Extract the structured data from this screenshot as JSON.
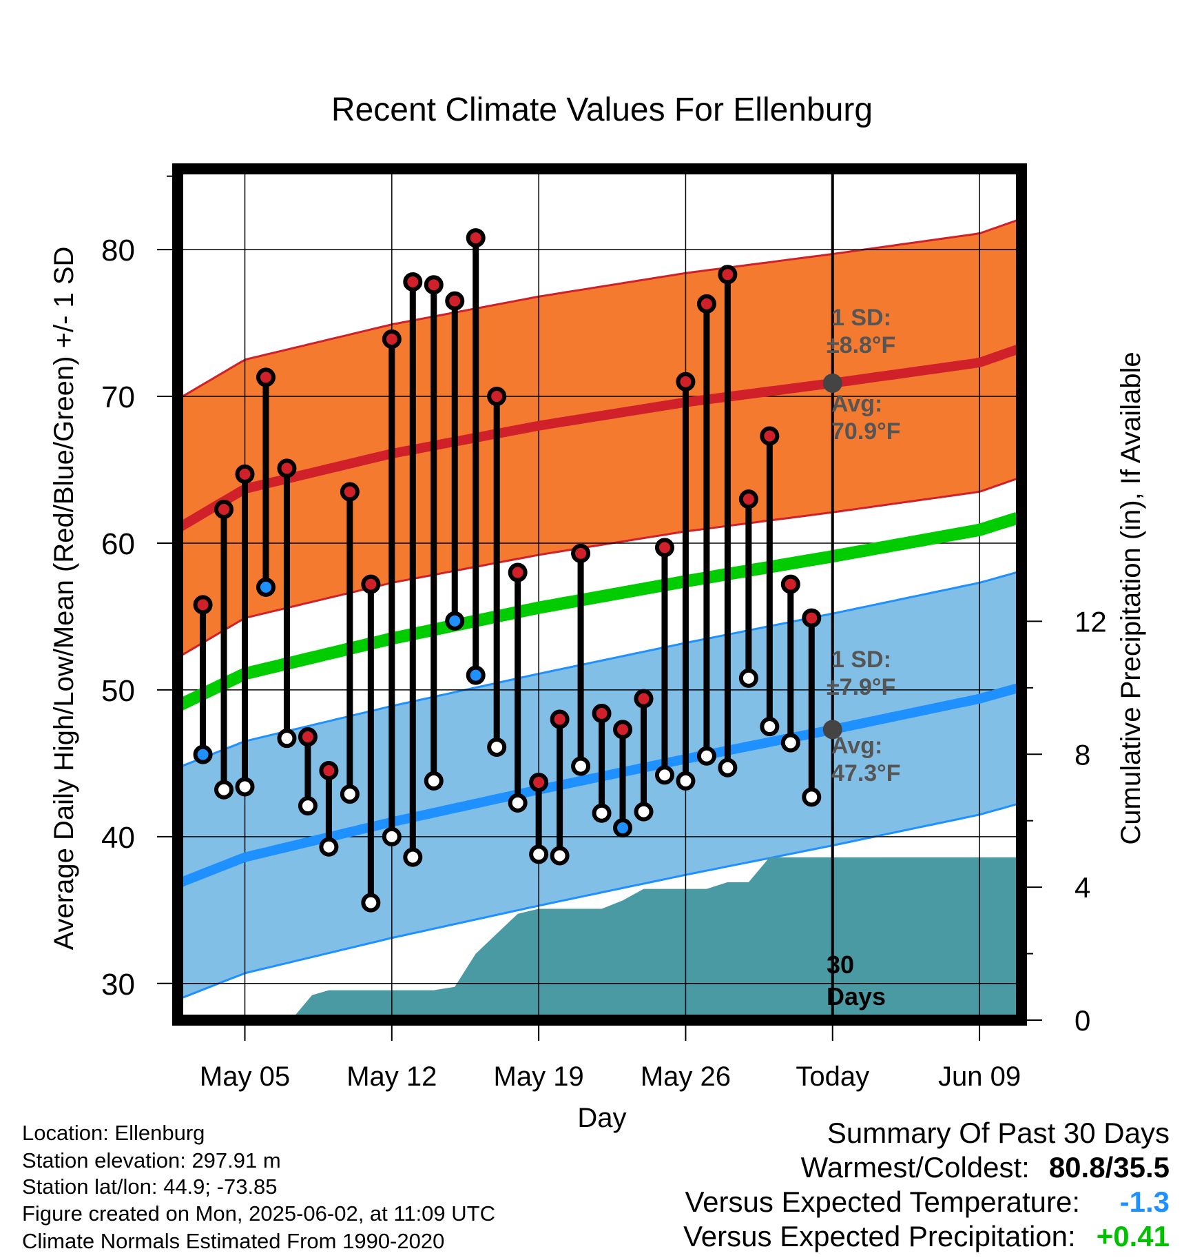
{
  "chart_data": {
    "type": "line",
    "title": "Recent Climate Values For Ellenburg",
    "xlabel": "Day",
    "ylabel": "Average Daily High/Low/Mean (Red/Blue/Green) +/- 1 SD",
    "y2label": "Cumulative Precipitation (in), If Available",
    "ylim": [
      27.5,
      85.5
    ],
    "y_ticks": [
      30,
      40,
      50,
      60,
      70,
      80
    ],
    "y2lim": [
      0,
      14
    ],
    "y2_ticks": [
      0,
      4,
      8,
      12
    ],
    "x_ticks": [
      {
        "day": 5,
        "label": "May 05"
      },
      {
        "day": 12,
        "label": "May 12"
      },
      {
        "day": 19,
        "label": "May 19"
      },
      {
        "day": 26,
        "label": "May 26"
      },
      {
        "day": 33,
        "label": "Today"
      },
      {
        "day": 40,
        "label": "Jun 09"
      }
    ],
    "x_range": [
      1.8,
      42.0
    ],
    "today_day": 33,
    "today_annotation": "30\nDays",
    "grid": true,
    "observed": {
      "days": [
        3,
        4,
        5,
        6,
        7,
        8,
        9,
        10,
        11,
        12,
        13,
        14,
        15,
        16,
        17,
        18,
        19,
        20,
        21,
        22,
        23,
        24,
        25,
        26,
        27,
        28,
        29,
        30,
        31,
        32
      ],
      "high": [
        55.8,
        62.3,
        64.7,
        71.3,
        65.1,
        46.8,
        44.5,
        63.5,
        57.2,
        73.9,
        77.8,
        77.6,
        76.5,
        80.8,
        70.0,
        58.0,
        43.7,
        48.0,
        59.3,
        48.4,
        47.3,
        49.4,
        59.7,
        71.0,
        76.3,
        78.3,
        63.0,
        67.3,
        57.2,
        54.9
      ],
      "low": [
        45.6,
        43.2,
        43.4,
        57.0,
        46.7,
        42.1,
        39.3,
        42.9,
        35.5,
        40.0,
        38.6,
        43.8,
        54.7,
        51.0,
        46.1,
        42.3,
        38.8,
        38.7,
        44.8,
        41.6,
        40.6,
        41.7,
        44.2,
        43.8,
        45.5,
        44.7,
        50.8,
        47.5,
        46.4,
        42.7
      ],
      "low_above_normal": [
        true,
        false,
        false,
        true,
        false,
        false,
        false,
        false,
        false,
        false,
        false,
        false,
        true,
        true,
        false,
        false,
        false,
        false,
        false,
        false,
        true,
        false,
        false,
        false,
        false,
        false,
        false,
        false,
        false,
        false
      ]
    },
    "normal_high": {
      "days": [
        1.8,
        5,
        12,
        19,
        26,
        33,
        40,
        42
      ],
      "avg": [
        61.0,
        63.7,
        66.1,
        68.0,
        69.6,
        70.9,
        72.3,
        73.3
      ],
      "sd": 8.8
    },
    "normal_low": {
      "days": [
        1.8,
        5,
        12,
        19,
        26,
        33,
        40,
        42
      ],
      "avg": [
        36.8,
        38.6,
        41.0,
        43.2,
        45.3,
        47.3,
        49.4,
        50.2
      ],
      "sd": 7.9
    },
    "normal_mean": {
      "days": [
        1.8,
        5,
        12,
        19,
        26,
        33,
        40,
        42
      ],
      "avg": [
        48.9,
        51.1,
        53.5,
        55.6,
        57.4,
        59.1,
        60.9,
        61.8
      ]
    },
    "precip": {
      "days": [
        7.2,
        8.2,
        9.0,
        10.0,
        11.0,
        12.0,
        13.0,
        14.0,
        15.0,
        16.0,
        17.0,
        18.0,
        19.0,
        20.0,
        21.0,
        22.0,
        23.0,
        24.0,
        25.0,
        26.0,
        27.0,
        28.0,
        29.0,
        30.0,
        31.0,
        32.0,
        33.0,
        42.0
      ],
      "cum": [
        0.0,
        0.75,
        0.9,
        0.9,
        0.9,
        0.9,
        0.9,
        0.9,
        1.0,
        2.0,
        2.6,
        3.2,
        3.35,
        3.35,
        3.35,
        3.35,
        3.6,
        3.95,
        3.95,
        3.95,
        3.95,
        4.15,
        4.15,
        4.9,
        4.9,
        4.9,
        4.9,
        4.9
      ]
    },
    "annotations": {
      "high_sd_label": "1 SD:",
      "high_sd_value": "±8.8°F",
      "high_avg_label": "Avg:",
      "high_avg_value": "70.9°F",
      "low_sd_label": "1 SD:",
      "low_sd_value": "±7.9°F",
      "low_avg_label": "Avg:",
      "low_avg_value": "47.3°F"
    },
    "colors": {
      "high_band": "#f47a2f",
      "high_line": "#d0202a",
      "high_band_edge": "#d0202a",
      "low_band": "#82bfe6",
      "low_line": "#1e90ff",
      "low_band_edge": "#1e90ff",
      "mean_line": "#00cc00",
      "precip": "#4a9aa3",
      "dot_high": "#d0202a",
      "dot_low_below": "#1e90ff",
      "annotation": "#555555",
      "today_marker": "#444444"
    }
  },
  "info": {
    "location": "Location: Ellenburg",
    "elevation": "Station elevation: 297.91 m",
    "latlon": "Station lat/lon: 44.9; -73.85",
    "created": "Figure created on Mon, 2025-06-02, at 11:09 UTC",
    "normals": "Climate Normals Estimated From 1990-2020"
  },
  "summary": {
    "title": "Summary Of Past 30 Days",
    "warmest_label": "Warmest/Coldest:",
    "warmest_value": "80.8/35.5",
    "temp_label": "Versus Expected Temperature:",
    "temp_value": "-1.3",
    "temp_color": "#1e90ff",
    "precip_label": "Versus Expected Precipitation:",
    "precip_value": "+0.41",
    "precip_color": "#00c000"
  }
}
